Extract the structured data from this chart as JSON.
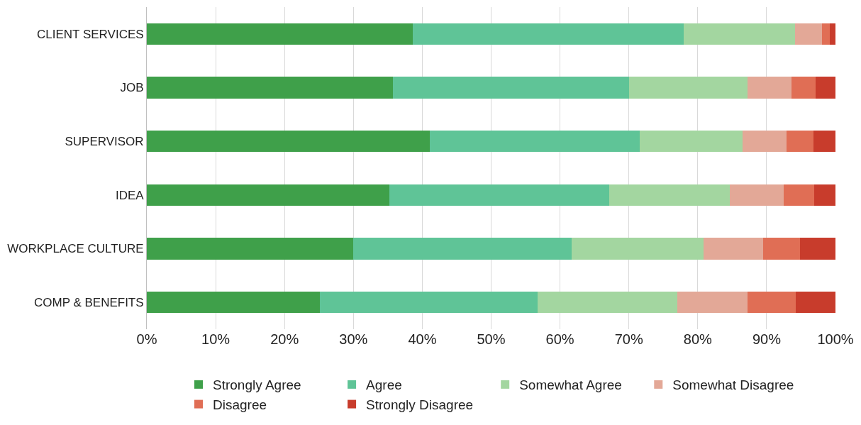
{
  "chart_data": {
    "type": "bar",
    "orientation": "horizontal",
    "stacked": true,
    "categories": [
      "CLIENT SERVICES",
      "JOB",
      "SUPERVISOR",
      "IDEA",
      "WORKPLACE CULTURE",
      "COMP & BENEFITS"
    ],
    "series": [
      {
        "name": "Strongly Agree",
        "color": "#3fa04a",
        "values": [
          38.6,
          35.7,
          41.1,
          35.2,
          30.0,
          25.1
        ]
      },
      {
        "name": "Agree",
        "color": "#5fc497",
        "values": [
          39.4,
          34.3,
          30.5,
          31.9,
          31.7,
          31.6
        ]
      },
      {
        "name": "Somewhat Agree",
        "color": "#a3d6a0",
        "values": [
          16.1,
          17.2,
          14.9,
          17.6,
          19.1,
          20.3
        ]
      },
      {
        "name": "Somewhat Disagree",
        "color": "#e3a897",
        "values": [
          3.9,
          6.4,
          6.4,
          7.8,
          8.7,
          10.2
        ]
      },
      {
        "name": "Disagree",
        "color": "#e06e55",
        "values": [
          1.2,
          3.5,
          3.9,
          4.4,
          5.3,
          7.0
        ]
      },
      {
        "name": "Strongly Disagree",
        "color": "#c83c2c",
        "values": [
          0.8,
          2.9,
          3.2,
          3.1,
          5.2,
          5.8
        ]
      }
    ],
    "xlim": [
      0,
      100
    ],
    "xticks": [
      {
        "value": 0,
        "label": "0%"
      },
      {
        "value": 10,
        "label": "10%"
      },
      {
        "value": 20,
        "label": "20%"
      },
      {
        "value": 30,
        "label": "30%"
      },
      {
        "value": 40,
        "label": "40%"
      },
      {
        "value": 50,
        "label": "50%"
      },
      {
        "value": 60,
        "label": "60%"
      },
      {
        "value": 70,
        "label": "70%"
      },
      {
        "value": 80,
        "label": "80%"
      },
      {
        "value": 90,
        "label": "90%"
      },
      {
        "value": 100,
        "label": "100%"
      }
    ],
    "grid": "x",
    "legend": "bottom"
  }
}
